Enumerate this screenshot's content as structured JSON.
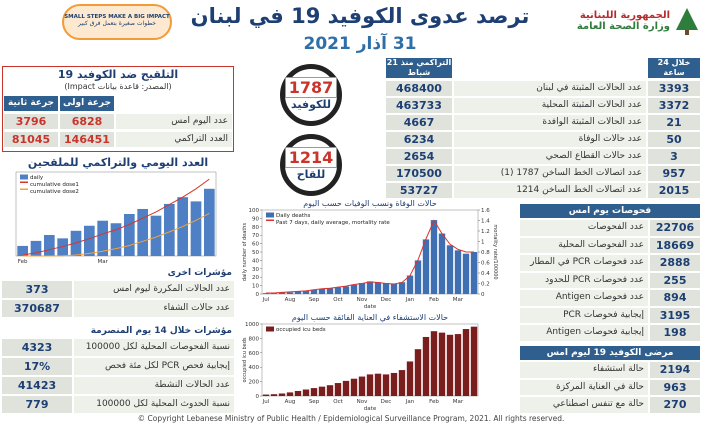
{
  "header": {
    "title": "ترصد عدوى الكوفيد 19 في لبنان",
    "date": "31 آذار 2021",
    "ministry": [
      "الجمهورية اللبنانية",
      "وزارة الصحة العامة"
    ],
    "campaign": [
      "SMALL STEPS MAKE A BIG IMPACT",
      "خطوات صغيرة بتعمل فرق كبير"
    ]
  },
  "summary": {
    "headers": [
      "خلال 24 ساعة المنصرمة",
      "التراكمي منذ 21 شباط"
    ],
    "rows": [
      {
        "label": "عدد الحالات المثبتة في لبنان",
        "day": 3393,
        "total": 468400
      },
      {
        "label": "عدد الحالات المثبتة المحلية",
        "day": 3372,
        "total": 463733
      },
      {
        "label": "عدد الحالات المثبتة الوافدة",
        "day": 21,
        "total": 4667
      },
      {
        "label": "عدد حالات الوفاة",
        "day": 50,
        "total": 6234
      },
      {
        "label": "عدد حالات القطاع الصحي",
        "day": 3,
        "total": 2654
      },
      {
        "label": "عدد اتصالات الخط الساخن 1787 (1)",
        "day": 957,
        "total": 170500
      },
      {
        "label": "عدد اتصالات الخط الساخن 1214",
        "day": 2015,
        "total": 53727
      }
    ]
  },
  "vaccination": {
    "title": "التلقيح ضد الكوفيد 19",
    "source": "(المصدر: قاعدة بيانات Impact)",
    "headers": [
      "جرعة اولى",
      "جرعة ثانية"
    ],
    "rows": [
      {
        "label": "عدد اليوم امس",
        "dose1": 6828,
        "dose2": 3796
      },
      {
        "label": "العدد التراكمي",
        "dose1": 146451,
        "dose2": 81045
      }
    ],
    "chart_title": "العدد اليومي والتراكمي للملقحين"
  },
  "hotlines": [
    {
      "number": 1787,
      "label": "للكوفيد"
    },
    {
      "number": 1214,
      "label": "للقاح"
    }
  ],
  "other_indicators": {
    "title": "مؤشرات اخرى",
    "rows": [
      {
        "label": "عدد الحالات المكررة ليوم امس",
        "value": 373
      },
      {
        "label": "عدد حالات الشفاء",
        "value": 370687
      }
    ]
  },
  "indicators_14d": {
    "title": "مؤشرات خلال 14 يوم المنصرمة",
    "rows": [
      {
        "label": "نسبة الفحوصات المحلية لكل 100000",
        "value": 4323
      },
      {
        "label": "إيجابية فحص PCR لكل مئة فحص",
        "value": "17%"
      },
      {
        "label": "عدد الحالات النشطة",
        "value": 41423
      },
      {
        "label": "نسبة الحدوث المحلية لكل 100000",
        "value": 779
      }
    ]
  },
  "tests": {
    "title": "فحوصات يوم امس",
    "rows": [
      {
        "label": "عدد الفحوصات",
        "value": 22706
      },
      {
        "label": "عدد الفحوصات المحلية",
        "value": 18669
      },
      {
        "label": "عدد فحوصات PCR في المطار",
        "value": 2888
      },
      {
        "label": "عدد فحوصات PCR للحدود",
        "value": 255
      },
      {
        "label": "عدد فحوصات Antigen",
        "value": 894
      },
      {
        "label": "إيجابية فحوصات PCR",
        "value": 3195
      },
      {
        "label": "إيجابية فحوصات Antigen",
        "value": 198
      }
    ]
  },
  "patients": {
    "title": "مرضى الكوفيد 19 ليوم امس",
    "rows": [
      {
        "label": "حالة استشفاء",
        "value": 2194
      },
      {
        "label": "حالة في العناية المركزة",
        "value": 963
      },
      {
        "label": "حالة مع تنفس اصطناعي",
        "value": 270
      }
    ]
  },
  "footer": "© Copyright Lebanese Ministry of Public Health / Epidemiological Surveillance Program, 2021. All rights reserved.",
  "chart_data": [
    {
      "type": "bar",
      "categories": [
        "Feb",
        null,
        null,
        null,
        null,
        null,
        "Mar",
        null,
        null,
        null,
        null,
        null,
        null,
        null,
        null
      ],
      "ylim": [
        0,
        10000
      ],
      "y2lim": [
        0,
        160000
      ],
      "series": [
        {
          "name": "daily",
          "color": "#4f7fc4",
          "values": [
            1200,
            1800,
            2500,
            2100,
            3000,
            3600,
            4200,
            3900,
            5000,
            5600,
            4800,
            6200,
            7000,
            6500,
            8000
          ]
        },
        {
          "name": "cumulative dose1",
          "color": "#d9342b",
          "axis": "y2",
          "values": [
            2000,
            6000,
            12000,
            18000,
            25000,
            33000,
            42000,
            50000,
            60000,
            72000,
            84000,
            98000,
            112000,
            128000,
            146451
          ]
        },
        {
          "name": "cumulative dose2",
          "color": "#f2a33a",
          "axis": "y2",
          "values": [
            0,
            0,
            0,
            500,
            2000,
            5000,
            9000,
            14000,
            20000,
            28000,
            36000,
            46000,
            56000,
            68000,
            81045
          ]
        }
      ]
    },
    {
      "type": "bar",
      "title": "حالات الوفاة ونسب الوفيات حسب اليوم",
      "x_label": "date",
      "y_label": "daily number of deaths",
      "y2_label": "mortality rate/100000",
      "categories": [
        "Jul",
        null,
        null,
        "Aug",
        null,
        null,
        "Sep",
        null,
        null,
        "Oct",
        null,
        null,
        "Nov",
        null,
        null,
        "Dec",
        null,
        null,
        "Jan",
        null,
        null,
        "Feb",
        null,
        null,
        "Mar",
        null,
        null
      ],
      "ylim": [
        0,
        100
      ],
      "yticks": [
        0,
        10,
        20,
        30,
        40,
        50,
        60,
        70,
        80,
        90,
        100
      ],
      "y2lim": [
        0,
        1.6
      ],
      "y2ticks": [
        0,
        0.2,
        0.4,
        0.6,
        0.8,
        1,
        1.2,
        1.4,
        1.6
      ],
      "series": [
        {
          "name": "Daily deaths",
          "color": "#3f6fb3",
          "values": [
            1,
            1,
            2,
            2,
            3,
            4,
            5,
            6,
            7,
            8,
            9,
            11,
            13,
            15,
            14,
            13,
            12,
            14,
            22,
            40,
            65,
            88,
            72,
            58,
            52,
            48,
            50
          ]
        },
        {
          "name": "Past 7 days, daily average, mortality rate",
          "color": "#d9342b",
          "axis": "y2",
          "values": [
            0.02,
            0.02,
            0.03,
            0.04,
            0.05,
            0.06,
            0.08,
            0.1,
            0.11,
            0.13,
            0.15,
            0.18,
            0.2,
            0.23,
            0.22,
            0.2,
            0.19,
            0.22,
            0.35,
            0.65,
            1.05,
            1.4,
            1.15,
            0.95,
            0.85,
            0.8,
            0.8
          ]
        }
      ]
    },
    {
      "type": "bar",
      "title": "حالات الاستشفاء في العناية الفائقة حسب اليوم",
      "x_label": "date",
      "y_label": "occupied icu beds",
      "categories": [
        "Jul",
        null,
        null,
        "Aug",
        null,
        null,
        "Sep",
        null,
        null,
        "Oct",
        null,
        null,
        "Nov",
        null,
        null,
        "Dec",
        null,
        null,
        "Jan",
        null,
        null,
        "Feb",
        null,
        null,
        "Mar",
        null,
        null
      ],
      "ylim": [
        0,
        1000
      ],
      "yticks": [
        0,
        200,
        400,
        600,
        800,
        1000
      ],
      "series": [
        {
          "name": "occupied icu beds",
          "color": "#7a1d1d",
          "values": [
            20,
            25,
            35,
            50,
            70,
            90,
            110,
            130,
            150,
            180,
            210,
            240,
            270,
            300,
            310,
            300,
            320,
            360,
            480,
            650,
            820,
            900,
            880,
            850,
            860,
            930,
            963
          ]
        }
      ]
    }
  ]
}
